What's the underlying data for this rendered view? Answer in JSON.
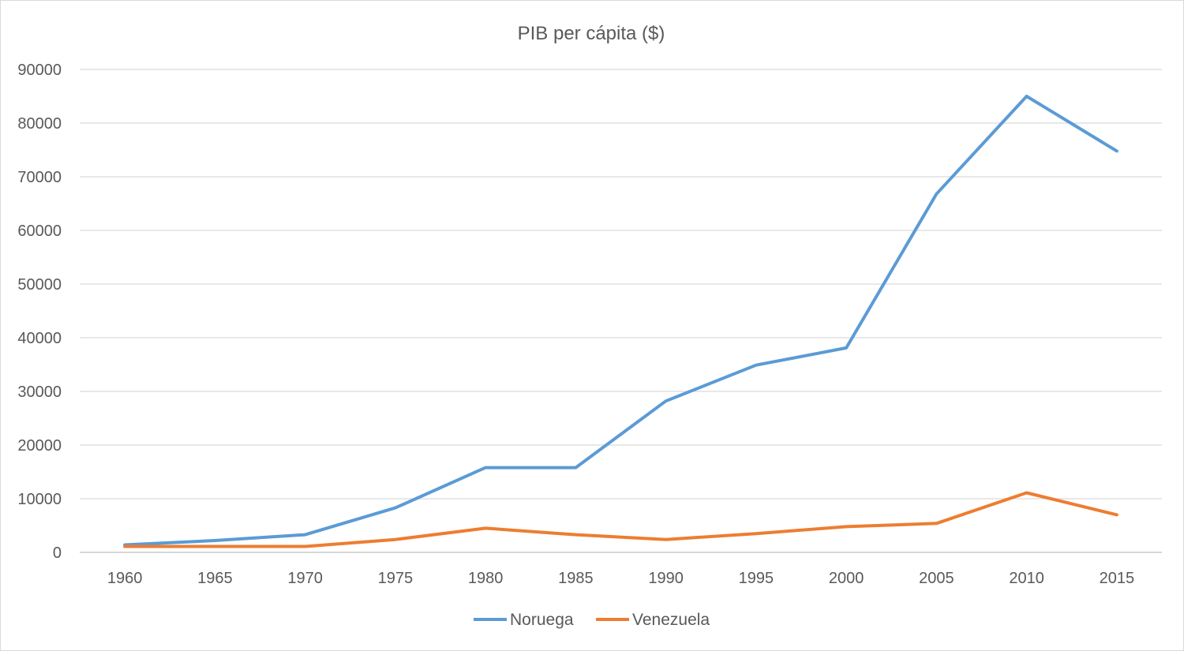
{
  "chart_data": {
    "type": "line",
    "title": "PIB per cápita ($)",
    "xlabel": "",
    "ylabel": "",
    "categories": [
      "1960",
      "1965",
      "1970",
      "1975",
      "1980",
      "1985",
      "1990",
      "1995",
      "2000",
      "2005",
      "2010",
      "2015"
    ],
    "y_ticks": [
      "0",
      "10000",
      "20000",
      "30000",
      "40000",
      "50000",
      "60000",
      "70000",
      "80000",
      "90000"
    ],
    "ylim": [
      0,
      90000
    ],
    "grid": true,
    "legend_position": "bottom",
    "series": [
      {
        "name": "Noruega",
        "color": "#5b9bd5",
        "values": [
          1400,
          2200,
          3300,
          8300,
          15800,
          15800,
          28200,
          34900,
          38100,
          66800,
          85000,
          74800
        ]
      },
      {
        "name": "Venezuela",
        "color": "#ed7d31",
        "values": [
          1100,
          1100,
          1100,
          2400,
          4500,
          3300,
          2400,
          3500,
          4800,
          5400,
          11100,
          7000
        ]
      }
    ]
  }
}
